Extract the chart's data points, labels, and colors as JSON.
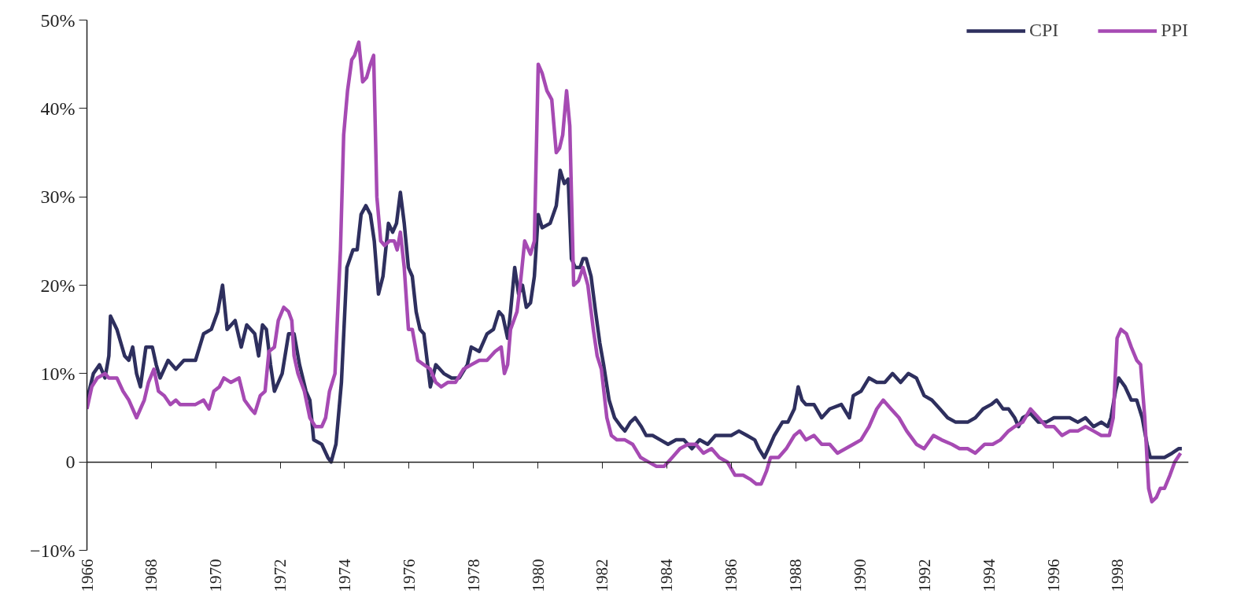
{
  "chart_data": {
    "type": "line",
    "legend": "top right",
    "marker": "none",
    "line_style": "solid",
    "xlim": [
      1966,
      2000.2
    ],
    "xticks": [
      1966,
      1968,
      1970,
      1972,
      1974,
      1976,
      1978,
      1980,
      1982,
      1984,
      1986,
      1988,
      1990,
      1992,
      1994,
      1996,
      1998
    ],
    "ylim": [
      -10,
      50
    ],
    "yticks": [
      {
        "value": -10,
        "label": "−10%"
      },
      0,
      {
        "value": 10,
        "label": "10%"
      },
      {
        "value": 20,
        "label": "20%"
      },
      {
        "value": 30,
        "label": "30%"
      },
      {
        "value": 40,
        "label": "40%"
      },
      {
        "value": 50,
        "label": "50%"
      }
    ],
    "series": [
      {
        "name": "CPI",
        "color": "#2e2f5e",
        "x": [
          1966.0,
          1966.2,
          1966.39,
          1966.56,
          1966.68,
          1966.73,
          1966.93,
          1967.17,
          1967.3,
          1967.42,
          1967.54,
          1967.66,
          1967.83,
          1968.03,
          1968.15,
          1968.27,
          1968.52,
          1968.76,
          1969.01,
          1969.37,
          1969.62,
          1969.86,
          1970.06,
          1970.21,
          1970.35,
          1970.6,
          1970.79,
          1970.96,
          1971.21,
          1971.33,
          1971.45,
          1971.57,
          1971.7,
          1971.82,
          1972.06,
          1972.26,
          1972.43,
          1972.6,
          1972.8,
          1972.92,
          1973.04,
          1973.29,
          1973.48,
          1973.58,
          1973.73,
          1973.9,
          1974.07,
          1974.26,
          1974.39,
          1974.51,
          1974.66,
          1974.8,
          1974.92,
          1975.05,
          1975.19,
          1975.36,
          1975.49,
          1975.61,
          1975.73,
          1975.85,
          1975.98,
          1976.1,
          1976.22,
          1976.34,
          1976.46,
          1976.66,
          1976.83,
          1977.08,
          1977.32,
          1977.56,
          1977.81,
          1977.93,
          1978.18,
          1978.42,
          1978.62,
          1978.79,
          1978.91,
          1979.06,
          1979.15,
          1979.28,
          1979.4,
          1979.52,
          1979.64,
          1979.77,
          1979.89,
          1980.01,
          1980.13,
          1980.38,
          1980.57,
          1980.69,
          1980.82,
          1980.94,
          1981.04,
          1981.16,
          1981.31,
          1981.4,
          1981.5,
          1981.65,
          1981.79,
          1981.92,
          1982.04,
          1982.21,
          1982.38,
          1982.58,
          1982.7,
          1982.87,
          1983.02,
          1983.21,
          1983.36,
          1983.56,
          1983.8,
          1984.04,
          1984.29,
          1984.53,
          1984.78,
          1985.02,
          1985.27,
          1985.51,
          1985.76,
          1986.0,
          1986.24,
          1986.49,
          1986.73,
          1986.86,
          1987.03,
          1987.22,
          1987.34,
          1987.59,
          1987.76,
          1987.96,
          1988.08,
          1988.2,
          1988.32,
          1988.57,
          1988.81,
          1989.06,
          1989.42,
          1989.67,
          1989.79,
          1990.03,
          1990.28,
          1990.52,
          1990.77,
          1991.01,
          1991.26,
          1991.5,
          1991.75,
          1991.99,
          1992.23,
          1992.48,
          1992.72,
          1992.97,
          1993.34,
          1993.58,
          1993.82,
          1994.07,
          1994.24,
          1994.44,
          1994.61,
          1994.8,
          1994.92,
          1995.05,
          1995.29,
          1995.54,
          1995.78,
          1996.02,
          1996.27,
          1996.51,
          1996.76,
          1997.0,
          1997.25,
          1997.49,
          1997.69,
          1997.79,
          1997.93,
          1998.03,
          1998.23,
          1998.42,
          1998.59,
          1998.76,
          1998.91,
          1999.01,
          1999.2,
          1999.45,
          1999.69,
          1999.89,
          1999.99
        ],
        "values": [
          7,
          10,
          11,
          9.5,
          12,
          16.5,
          15,
          12,
          11.5,
          13,
          10,
          8.5,
          13,
          13,
          11,
          9.5,
          11.5,
          10.5,
          11.5,
          11.5,
          14.5,
          15,
          17,
          20,
          15,
          16,
          13,
          15.5,
          14.5,
          12,
          15.5,
          15,
          11,
          8,
          10,
          14.5,
          14.5,
          11,
          8,
          7,
          2.5,
          2,
          0.5,
          0,
          2,
          9,
          22,
          24,
          24,
          28,
          29,
          28,
          25,
          19,
          21,
          27,
          26,
          27,
          30.5,
          27,
          22,
          21,
          17,
          15,
          14.5,
          8.5,
          11,
          10,
          9.5,
          9.5,
          11,
          13,
          12.5,
          14.5,
          15,
          17,
          16.5,
          14,
          17,
          22,
          19,
          20,
          17.5,
          18,
          21,
          28,
          26.5,
          27,
          29,
          33,
          31.5,
          32,
          23,
          22,
          22,
          23,
          23,
          21,
          17,
          13.5,
          11,
          7,
          5,
          4,
          3.5,
          4.5,
          5,
          4,
          3,
          3,
          2.5,
          2,
          2.5,
          2.5,
          1.5,
          2.5,
          2,
          3,
          3,
          3,
          3.5,
          3,
          2.5,
          1.5,
          0.5,
          2,
          3,
          4.5,
          4.5,
          6,
          8.5,
          7,
          6.5,
          6.5,
          5,
          6,
          6.5,
          5,
          7.5,
          8,
          9.5,
          9,
          9,
          10,
          9,
          10,
          9.5,
          7.5,
          7,
          6,
          5,
          4.5,
          4.5,
          5,
          6,
          6.5,
          7,
          6,
          6,
          5,
          4,
          5,
          5.5,
          4.5,
          4.5,
          5,
          5,
          5,
          4.5,
          5,
          4,
          4.5,
          4,
          5,
          8,
          9.5,
          8.5,
          7,
          7,
          5,
          2,
          0.5,
          0.5,
          0.5,
          1,
          1.5,
          1.5
        ]
      },
      {
        "name": "PPI",
        "color": "#a64ab3",
        "x": [
          1966.0,
          1966.15,
          1966.32,
          1966.56,
          1966.68,
          1966.93,
          1967.12,
          1967.3,
          1967.42,
          1967.54,
          1967.66,
          1967.78,
          1967.91,
          1968.08,
          1968.22,
          1968.4,
          1968.59,
          1968.76,
          1968.89,
          1969.13,
          1969.37,
          1969.62,
          1969.79,
          1969.94,
          1970.11,
          1970.25,
          1970.47,
          1970.72,
          1970.89,
          1971.09,
          1971.21,
          1971.38,
          1971.53,
          1971.65,
          1971.82,
          1971.94,
          1972.11,
          1972.26,
          1972.36,
          1972.43,
          1972.55,
          1972.75,
          1972.92,
          1973.09,
          1973.29,
          1973.41,
          1973.53,
          1973.7,
          1973.87,
          1973.97,
          1974.09,
          1974.22,
          1974.31,
          1974.44,
          1974.56,
          1974.68,
          1974.8,
          1974.9,
          1975.0,
          1975.12,
          1975.24,
          1975.39,
          1975.54,
          1975.63,
          1975.73,
          1975.85,
          1975.98,
          1976.1,
          1976.27,
          1976.46,
          1976.66,
          1976.83,
          1977.0,
          1977.2,
          1977.44,
          1977.69,
          1977.93,
          1978.18,
          1978.42,
          1978.67,
          1978.86,
          1978.96,
          1979.06,
          1979.15,
          1979.35,
          1979.45,
          1979.59,
          1979.77,
          1979.89,
          1980.01,
          1980.13,
          1980.28,
          1980.43,
          1980.57,
          1980.67,
          1980.77,
          1980.89,
          1980.99,
          1981.11,
          1981.26,
          1981.4,
          1981.55,
          1981.72,
          1981.84,
          1981.97,
          1982.14,
          1982.28,
          1982.45,
          1982.7,
          1982.94,
          1983.19,
          1983.43,
          1983.68,
          1983.92,
          1984.17,
          1984.41,
          1984.66,
          1984.9,
          1985.14,
          1985.39,
          1985.63,
          1985.88,
          1986.12,
          1986.37,
          1986.61,
          1986.78,
          1986.93,
          1987.1,
          1987.22,
          1987.47,
          1987.71,
          1987.96,
          1988.13,
          1988.32,
          1988.57,
          1988.81,
          1989.06,
          1989.3,
          1989.55,
          1989.79,
          1990.03,
          1990.28,
          1990.52,
          1990.72,
          1990.96,
          1991.21,
          1991.45,
          1991.75,
          1991.99,
          1992.28,
          1992.53,
          1992.85,
          1993.09,
          1993.34,
          1993.58,
          1993.87,
          1994.12,
          1994.36,
          1994.61,
          1994.8,
          1995.05,
          1995.29,
          1995.54,
          1995.78,
          1996.02,
          1996.27,
          1996.51,
          1996.76,
          1997.0,
          1997.25,
          1997.49,
          1997.74,
          1997.86,
          1997.98,
          1998.1,
          1998.27,
          1998.42,
          1998.59,
          1998.71,
          1998.84,
          1998.96,
          1999.06,
          1999.2,
          1999.32,
          1999.45,
          1999.62,
          1999.77,
          1999.95
        ],
        "values": [
          6,
          8.5,
          9.5,
          10,
          9.5,
          9.5,
          8,
          7,
          6,
          5,
          6,
          7,
          9,
          10.5,
          8,
          7.5,
          6.5,
          7,
          6.5,
          6.5,
          6.5,
          7,
          6,
          8,
          8.5,
          9.5,
          9,
          9.5,
          7,
          6,
          5.5,
          7.5,
          8,
          12.5,
          13,
          16,
          17.5,
          17,
          16,
          12,
          10,
          8,
          5,
          4,
          4,
          5,
          8,
          10,
          24,
          37,
          42,
          45.5,
          46,
          47.5,
          43,
          43.5,
          45,
          46,
          30,
          25,
          24.5,
          25,
          25,
          24,
          26,
          22,
          15,
          15,
          11.5,
          11,
          10.5,
          9,
          8.5,
          9,
          9,
          10.5,
          11,
          11.5,
          11.5,
          12.5,
          13,
          10,
          11,
          15,
          17,
          20,
          25,
          23.5,
          25,
          45,
          44,
          42,
          41,
          35,
          35.5,
          37,
          42,
          38,
          20,
          20.5,
          22,
          20,
          15,
          12,
          10.5,
          5,
          3,
          2.5,
          2.5,
          2,
          0.5,
          0,
          -0.5,
          -0.5,
          0.5,
          1.5,
          2,
          2,
          1,
          1.5,
          0.5,
          0,
          -1.5,
          -1.5,
          -2,
          -2.5,
          -2.5,
          -1,
          0.5,
          0.5,
          1.5,
          3,
          3.5,
          2.5,
          3,
          2,
          2,
          1,
          1.5,
          2,
          2.5,
          4,
          6,
          7,
          6,
          5,
          3.5,
          2,
          1.5,
          3,
          2.5,
          2,
          1.5,
          1.5,
          1,
          2,
          2,
          2.5,
          3.5,
          4,
          4.5,
          6,
          5,
          4,
          4,
          3,
          3.5,
          3.5,
          4,
          3.5,
          3,
          3,
          5,
          14,
          15,
          14.5,
          13,
          11.5,
          11,
          5,
          -3,
          -4.5,
          -4,
          -3,
          -3,
          -1.5,
          0,
          1
        ]
      }
    ]
  }
}
